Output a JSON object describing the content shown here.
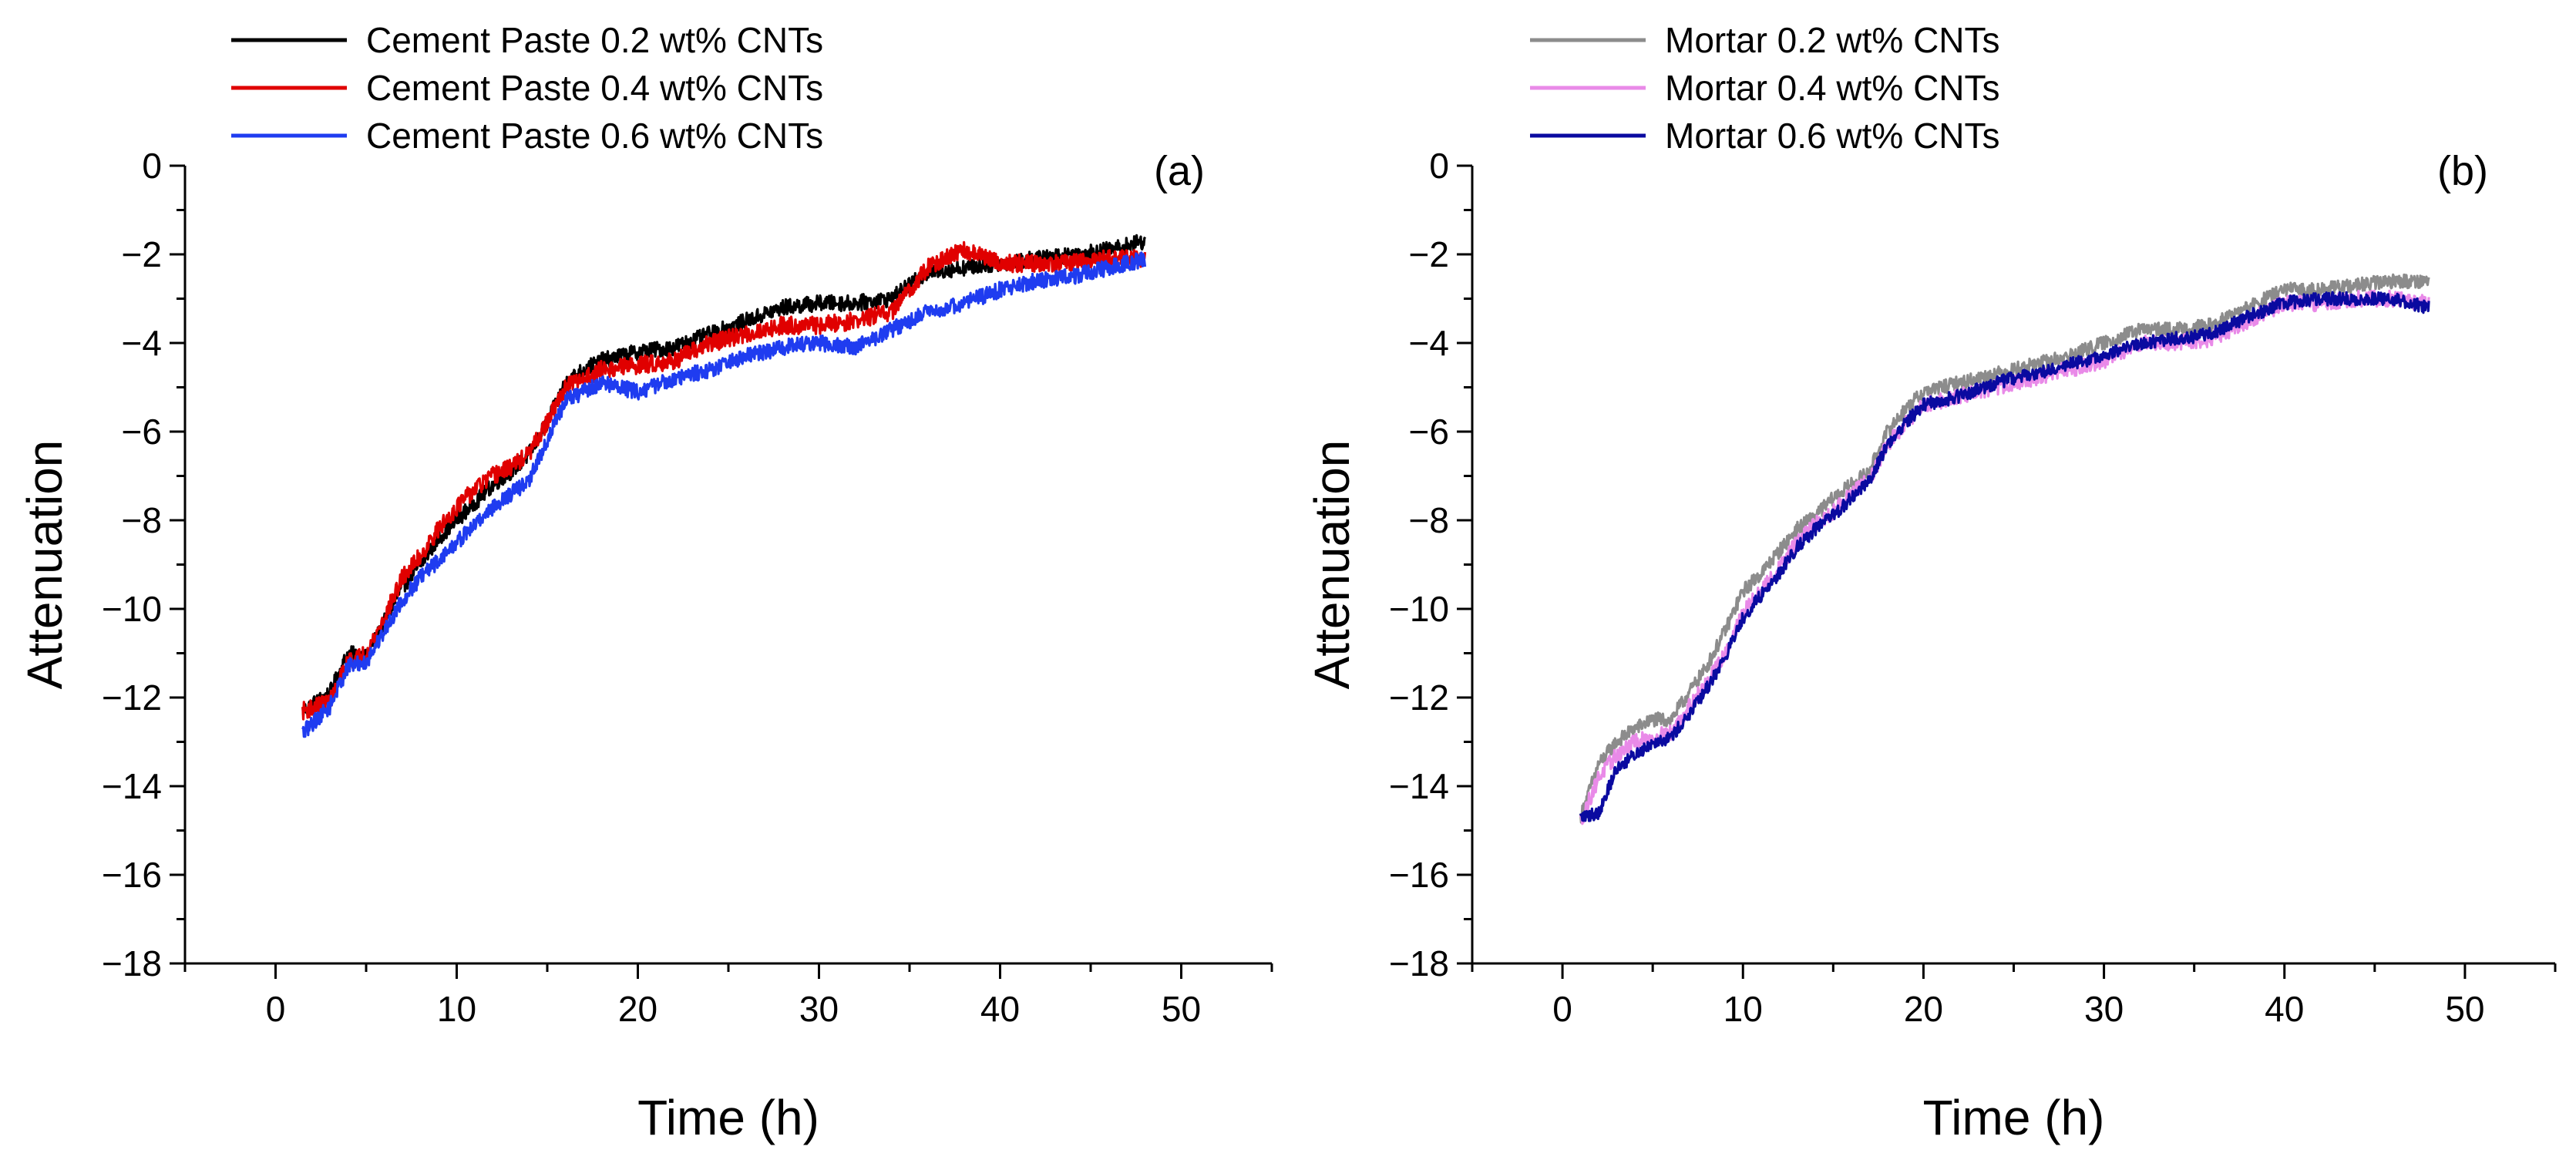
{
  "chart_data": [
    {
      "type": "line",
      "panel_label": "(a)",
      "xlabel": "Time (h)",
      "ylabel": "Attenuation",
      "xlim": [
        -5,
        55
      ],
      "ylim": [
        -18,
        0
      ],
      "xticks": [
        0,
        10,
        20,
        30,
        40,
        50
      ],
      "yticks": [
        0,
        -2,
        -4,
        -6,
        -8,
        -10,
        -12,
        -14,
        -16,
        -18
      ],
      "legend_position": "top-left",
      "series": [
        {
          "name": "Cement Paste 0.2 wt% CNTs",
          "color": "#000000",
          "points": [
            [
              1.5,
              -12.3
            ],
            [
              3,
              -11.9
            ],
            [
              4,
              -11.0
            ],
            [
              5,
              -11.1
            ],
            [
              6,
              -10.3
            ],
            [
              7,
              -9.5
            ],
            [
              8,
              -9.0
            ],
            [
              9,
              -8.4
            ],
            [
              10,
              -8.0
            ],
            [
              11,
              -7.6
            ],
            [
              12,
              -7.2
            ],
            [
              13,
              -6.9
            ],
            [
              14,
              -6.5
            ],
            [
              15,
              -5.8
            ],
            [
              16,
              -4.9
            ],
            [
              17,
              -4.6
            ],
            [
              18,
              -4.4
            ],
            [
              20,
              -4.2
            ],
            [
              22,
              -4.1
            ],
            [
              24,
              -3.8
            ],
            [
              26,
              -3.5
            ],
            [
              28,
              -3.2
            ],
            [
              30,
              -3.1
            ],
            [
              32,
              -3.1
            ],
            [
              34,
              -3.0
            ],
            [
              35,
              -2.7
            ],
            [
              36,
              -2.4
            ],
            [
              38,
              -2.3
            ],
            [
              40,
              -2.2
            ],
            [
              42,
              -2.1
            ],
            [
              44,
              -2.0
            ],
            [
              46,
              -1.9
            ],
            [
              48,
              -1.7
            ]
          ],
          "noise": 0.18
        },
        {
          "name": "Cement Paste 0.4 wt% CNTs",
          "color": "#e00000",
          "points": [
            [
              1.5,
              -12.3
            ],
            [
              3,
              -12.1
            ],
            [
              4,
              -11.2
            ],
            [
              5,
              -11.0
            ],
            [
              6,
              -10.2
            ],
            [
              7,
              -9.3
            ],
            [
              8,
              -8.8
            ],
            [
              9,
              -8.2
            ],
            [
              10,
              -7.7
            ],
            [
              11,
              -7.3
            ],
            [
              12,
              -7.0
            ],
            [
              13,
              -6.8
            ],
            [
              14,
              -6.5
            ],
            [
              15,
              -5.8
            ],
            [
              16,
              -5.0
            ],
            [
              17,
              -4.8
            ],
            [
              18,
              -4.6
            ],
            [
              20,
              -4.5
            ],
            [
              22,
              -4.4
            ],
            [
              24,
              -4.0
            ],
            [
              26,
              -3.8
            ],
            [
              28,
              -3.6
            ],
            [
              30,
              -3.6
            ],
            [
              32,
              -3.5
            ],
            [
              34,
              -3.3
            ],
            [
              35,
              -2.8
            ],
            [
              36,
              -2.3
            ],
            [
              37,
              -2.1
            ],
            [
              38,
              -1.9
            ],
            [
              40,
              -2.2
            ],
            [
              42,
              -2.2
            ],
            [
              44,
              -2.2
            ],
            [
              46,
              -2.1
            ],
            [
              48,
              -2.1
            ]
          ],
          "noise": 0.2
        },
        {
          "name": "Cement Paste 0.6 wt% CNTs",
          "color": "#1f3cf0",
          "points": [
            [
              1.5,
              -12.8
            ],
            [
              3,
              -12.2
            ],
            [
              4,
              -11.3
            ],
            [
              5,
              -11.2
            ],
            [
              6,
              -10.5
            ],
            [
              7,
              -9.8
            ],
            [
              8,
              -9.3
            ],
            [
              9,
              -8.9
            ],
            [
              10,
              -8.5
            ],
            [
              11,
              -8.1
            ],
            [
              12,
              -7.7
            ],
            [
              13,
              -7.4
            ],
            [
              14,
              -7.1
            ],
            [
              15,
              -6.2
            ],
            [
              16,
              -5.3
            ],
            [
              17,
              -5.1
            ],
            [
              18,
              -4.9
            ],
            [
              20,
              -5.1
            ],
            [
              22,
              -4.8
            ],
            [
              24,
              -4.6
            ],
            [
              26,
              -4.3
            ],
            [
              28,
              -4.1
            ],
            [
              30,
              -4.0
            ],
            [
              32,
              -4.1
            ],
            [
              34,
              -3.7
            ],
            [
              36,
              -3.3
            ],
            [
              38,
              -3.1
            ],
            [
              40,
              -2.8
            ],
            [
              42,
              -2.6
            ],
            [
              44,
              -2.5
            ],
            [
              46,
              -2.3
            ],
            [
              48,
              -2.1
            ]
          ],
          "noise": 0.18
        }
      ]
    },
    {
      "type": "line",
      "panel_label": "(b)",
      "xlabel": "Time (h)",
      "ylabel": "Attenuation",
      "xlim": [
        -5,
        55
      ],
      "ylim": [
        -18,
        0
      ],
      "xticks": [
        0,
        10,
        20,
        30,
        40,
        50
      ],
      "yticks": [
        0,
        -2,
        -4,
        -6,
        -8,
        -10,
        -12,
        -14,
        -16,
        -18
      ],
      "legend_position": "top-left",
      "series": [
        {
          "name": "Mortar 0.2 wt% CNTs",
          "color": "#8c8c8c",
          "points": [
            [
              1,
              -14.7
            ],
            [
              2,
              -13.5
            ],
            [
              3,
              -13.0
            ],
            [
              4,
              -12.7
            ],
            [
              5,
              -12.5
            ],
            [
              6,
              -12.5
            ],
            [
              7,
              -11.9
            ],
            [
              8,
              -11.3
            ],
            [
              9,
              -10.5
            ],
            [
              10,
              -9.6
            ],
            [
              11,
              -9.2
            ],
            [
              12,
              -8.7
            ],
            [
              13,
              -8.2
            ],
            [
              14,
              -7.9
            ],
            [
              15,
              -7.5
            ],
            [
              16,
              -7.2
            ],
            [
              17,
              -6.9
            ],
            [
              18,
              -6.0
            ],
            [
              19,
              -5.5
            ],
            [
              20,
              -5.1
            ],
            [
              22,
              -4.9
            ],
            [
              24,
              -4.7
            ],
            [
              26,
              -4.5
            ],
            [
              28,
              -4.3
            ],
            [
              30,
              -4.0
            ],
            [
              32,
              -3.7
            ],
            [
              34,
              -3.7
            ],
            [
              36,
              -3.6
            ],
            [
              38,
              -3.2
            ],
            [
              40,
              -2.8
            ],
            [
              42,
              -2.8
            ],
            [
              44,
              -2.7
            ],
            [
              46,
              -2.6
            ],
            [
              48,
              -2.6
            ]
          ],
          "noise": 0.16
        },
        {
          "name": "Mortar 0.4 wt% CNTs",
          "color": "#e98ae8",
          "points": [
            [
              1,
              -14.8
            ],
            [
              2,
              -13.8
            ],
            [
              3,
              -13.3
            ],
            [
              4,
              -13.0
            ],
            [
              5,
              -12.9
            ],
            [
              6,
              -12.8
            ],
            [
              7,
              -12.2
            ],
            [
              8,
              -11.7
            ],
            [
              9,
              -11.0
            ],
            [
              10,
              -10.1
            ],
            [
              11,
              -9.6
            ],
            [
              12,
              -9.1
            ],
            [
              13,
              -8.5
            ],
            [
              14,
              -8.1
            ],
            [
              15,
              -7.8
            ],
            [
              16,
              -7.4
            ],
            [
              17,
              -7.1
            ],
            [
              18,
              -6.3
            ],
            [
              19,
              -5.8
            ],
            [
              20,
              -5.4
            ],
            [
              22,
              -5.2
            ],
            [
              24,
              -5.0
            ],
            [
              26,
              -4.8
            ],
            [
              28,
              -4.6
            ],
            [
              30,
              -4.4
            ],
            [
              32,
              -4.0
            ],
            [
              34,
              -4.0
            ],
            [
              36,
              -3.9
            ],
            [
              38,
              -3.5
            ],
            [
              40,
              -3.1
            ],
            [
              42,
              -3.1
            ],
            [
              44,
              -3.0
            ],
            [
              46,
              -3.0
            ],
            [
              48,
              -3.1
            ]
          ],
          "noise": 0.18
        },
        {
          "name": "Mortar 0.6 wt% CNTs",
          "color": "#0a0aa0",
          "points": [
            [
              1,
              -14.7
            ],
            [
              2,
              -14.6
            ],
            [
              3,
              -13.6
            ],
            [
              4,
              -13.3
            ],
            [
              5,
              -13.0
            ],
            [
              6,
              -12.9
            ],
            [
              7,
              -12.4
            ],
            [
              8,
              -11.8
            ],
            [
              9,
              -11.1
            ],
            [
              10,
              -10.2
            ],
            [
              11,
              -9.7
            ],
            [
              12,
              -9.2
            ],
            [
              13,
              -8.6
            ],
            [
              14,
              -8.2
            ],
            [
              15,
              -7.9
            ],
            [
              16,
              -7.5
            ],
            [
              17,
              -7.1
            ],
            [
              18,
              -6.3
            ],
            [
              19,
              -5.8
            ],
            [
              20,
              -5.4
            ],
            [
              22,
              -5.2
            ],
            [
              24,
              -4.9
            ],
            [
              26,
              -4.7
            ],
            [
              28,
              -4.5
            ],
            [
              30,
              -4.3
            ],
            [
              32,
              -4.0
            ],
            [
              34,
              -3.9
            ],
            [
              36,
              -3.8
            ],
            [
              38,
              -3.4
            ],
            [
              40,
              -3.1
            ],
            [
              42,
              -3.0
            ],
            [
              44,
              -3.0
            ],
            [
              46,
              -3.0
            ],
            [
              48,
              -3.2
            ]
          ],
          "noise": 0.15
        }
      ]
    }
  ]
}
